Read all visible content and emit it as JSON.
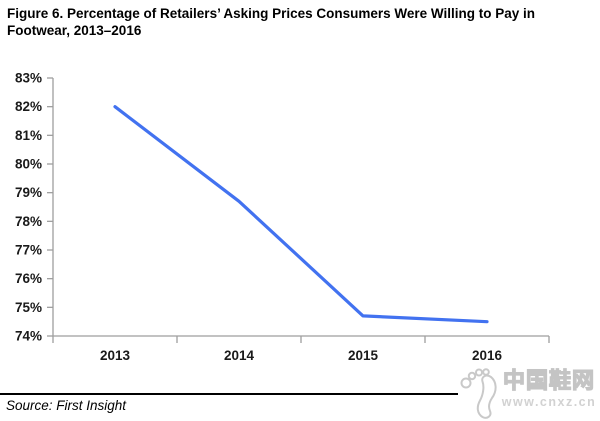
{
  "figure": {
    "title_lines": [
      "Figure 6. Percentage of Retailers’ Asking Prices Consumers Were Willing to Pay in",
      "Footwear, 2013–2016"
    ],
    "source": "Source: First Insight"
  },
  "chart_data": {
    "type": "line",
    "title": "Figure 6. Percentage of Retailers’ Asking Prices Consumers Were Willing to Pay in Footwear, 2013–2016",
    "categories": [
      "2013",
      "2014",
      "2015",
      "2016"
    ],
    "values": [
      82.0,
      78.7,
      74.7,
      74.5
    ],
    "xlabel": "",
    "ylabel": "",
    "ylim": [
      74,
      83
    ],
    "ytick_step": 1,
    "ytick_labels": [
      "83%",
      "82%",
      "81%",
      "80%",
      "79%",
      "78%",
      "77%",
      "76%",
      "75%",
      "74%"
    ],
    "grid": false,
    "legend": "none",
    "line_color": "#4272F0"
  },
  "watermark": {
    "icon": "footprint-icon",
    "site_name": "中国鞋网",
    "site_url": "www.cnxz.cn"
  },
  "colors": {
    "line": "#4272F0",
    "axis": "#9E9E9E",
    "tick_text": "#1A1A1A",
    "rule": "#000000",
    "watermark_gray": "#C9C9C9"
  }
}
